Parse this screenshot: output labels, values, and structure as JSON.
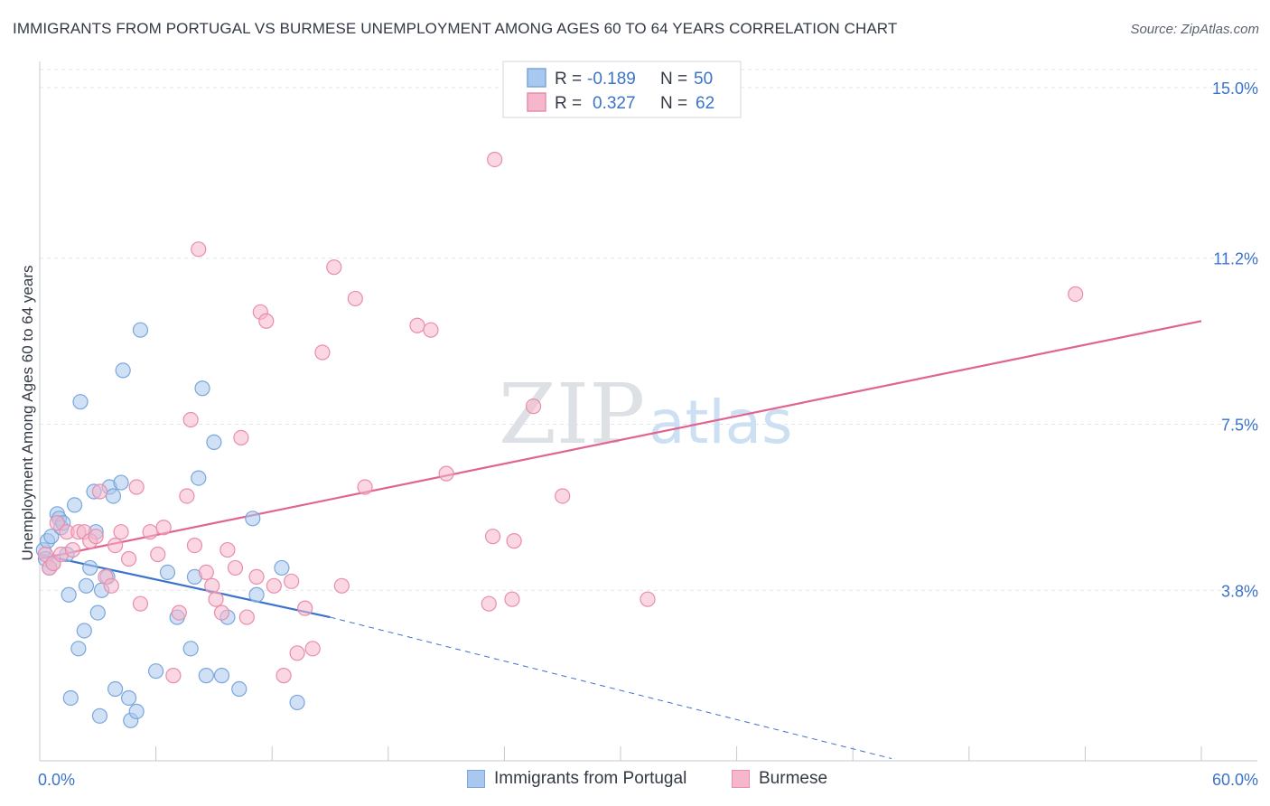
{
  "title": "IMMIGRANTS FROM PORTUGAL VS BURMESE UNEMPLOYMENT AMONG AGES 60 TO 64 YEARS CORRELATION CHART",
  "source": "Source: ZipAtlas.com",
  "watermark": {
    "zip": "ZIP",
    "atlas": "atlas"
  },
  "legend_stats": [
    {
      "r_label": "R =",
      "r_value": "-0.189",
      "n_label": "N =",
      "n_value": "50"
    },
    {
      "r_label": "R =",
      "r_value": "0.327",
      "n_label": "N =",
      "n_value": "62"
    }
  ],
  "legend_bottom": [
    "Immigrants from Portugal",
    "Burmese"
  ],
  "colors": {
    "blue_fill": "#a9c8ef",
    "blue_stroke": "#7aa6dc",
    "blue_line": "#3b73cc",
    "pink_fill": "#f6b6cb",
    "pink_stroke": "#e88eab",
    "pink_line": "#e0648f",
    "value_text": "#3b73cc",
    "grid": "#e3e6ea"
  },
  "chart_data": {
    "type": "scatter",
    "title": "IMMIGRANTS FROM PORTUGAL VS BURMESE UNEMPLOYMENT AMONG AGES 60 TO 64 YEARS CORRELATION CHART",
    "xlabel": "",
    "ylabel": "Unemployment Among Ages 60 to 64 years",
    "xlim": [
      0,
      60
    ],
    "ylim": [
      0,
      15.5
    ],
    "x_tick_labels": [
      {
        "value": 0,
        "label": "0.0%"
      },
      {
        "value": 60,
        "label": "60.0%"
      }
    ],
    "y_tick_labels": [
      {
        "value": 3.8,
        "label": "3.8%"
      },
      {
        "value": 7.5,
        "label": "7.5%"
      },
      {
        "value": 11.2,
        "label": "11.2%"
      },
      {
        "value": 15.0,
        "label": "15.0%"
      }
    ],
    "series": [
      {
        "name": "Immigrants from Portugal",
        "color": "blue",
        "points": [
          [
            0.2,
            4.7
          ],
          [
            0.3,
            4.5
          ],
          [
            0.4,
            4.9
          ],
          [
            0.5,
            4.3
          ],
          [
            0.6,
            5.0
          ],
          [
            0.7,
            4.4
          ],
          [
            0.9,
            5.5
          ],
          [
            1.0,
            5.4
          ],
          [
            1.1,
            5.2
          ],
          [
            1.2,
            5.3
          ],
          [
            1.4,
            4.6
          ],
          [
            1.5,
            3.7
          ],
          [
            1.6,
            1.4
          ],
          [
            1.8,
            5.7
          ],
          [
            2.0,
            2.5
          ],
          [
            2.1,
            8.0
          ],
          [
            2.3,
            2.9
          ],
          [
            2.4,
            3.9
          ],
          [
            2.6,
            4.3
          ],
          [
            2.8,
            6.0
          ],
          [
            2.9,
            5.1
          ],
          [
            3.0,
            3.3
          ],
          [
            3.1,
            1.0
          ],
          [
            3.2,
            3.8
          ],
          [
            3.5,
            4.1
          ],
          [
            3.6,
            6.1
          ],
          [
            3.8,
            5.9
          ],
          [
            3.9,
            1.6
          ],
          [
            4.2,
            6.2
          ],
          [
            4.3,
            8.7
          ],
          [
            4.6,
            1.4
          ],
          [
            4.7,
            0.9
          ],
          [
            5.0,
            1.1
          ],
          [
            5.2,
            9.6
          ],
          [
            6.0,
            2.0
          ],
          [
            6.6,
            4.2
          ],
          [
            7.1,
            3.2
          ],
          [
            7.8,
            2.5
          ],
          [
            8.0,
            4.1
          ],
          [
            8.2,
            6.3
          ],
          [
            8.4,
            8.3
          ],
          [
            8.6,
            1.9
          ],
          [
            9.0,
            7.1
          ],
          [
            9.4,
            1.9
          ],
          [
            9.7,
            3.2
          ],
          [
            10.3,
            1.6
          ],
          [
            11.0,
            5.4
          ],
          [
            11.2,
            3.7
          ],
          [
            12.5,
            4.3
          ],
          [
            13.3,
            1.3
          ]
        ],
        "trend": {
          "x1": 0,
          "y1": 4.6,
          "x2": 15,
          "y2": 3.2,
          "dashed_to_x": 44,
          "dashed_to_y": 0.05
        }
      },
      {
        "name": "Burmese",
        "color": "pink",
        "points": [
          [
            0.3,
            4.6
          ],
          [
            0.5,
            4.3
          ],
          [
            0.7,
            4.4
          ],
          [
            0.9,
            5.3
          ],
          [
            1.1,
            4.6
          ],
          [
            1.4,
            5.1
          ],
          [
            1.7,
            4.7
          ],
          [
            2.0,
            5.1
          ],
          [
            2.3,
            5.1
          ],
          [
            2.6,
            4.9
          ],
          [
            2.9,
            5.0
          ],
          [
            3.1,
            6.0
          ],
          [
            3.4,
            4.1
          ],
          [
            3.7,
            3.9
          ],
          [
            3.9,
            4.8
          ],
          [
            4.2,
            5.1
          ],
          [
            4.6,
            4.5
          ],
          [
            5.0,
            6.1
          ],
          [
            5.2,
            3.5
          ],
          [
            5.7,
            5.1
          ],
          [
            6.1,
            4.6
          ],
          [
            6.4,
            5.2
          ],
          [
            6.9,
            1.9
          ],
          [
            7.2,
            3.3
          ],
          [
            7.6,
            5.9
          ],
          [
            7.8,
            7.6
          ],
          [
            8.0,
            4.8
          ],
          [
            8.2,
            11.4
          ],
          [
            8.6,
            4.2
          ],
          [
            8.9,
            3.9
          ],
          [
            9.1,
            3.6
          ],
          [
            9.4,
            3.3
          ],
          [
            9.7,
            4.7
          ],
          [
            10.1,
            4.3
          ],
          [
            10.4,
            7.2
          ],
          [
            10.7,
            3.2
          ],
          [
            11.2,
            4.1
          ],
          [
            11.4,
            10.0
          ],
          [
            11.7,
            9.8
          ],
          [
            12.1,
            3.9
          ],
          [
            12.6,
            1.9
          ],
          [
            13.0,
            4.0
          ],
          [
            13.3,
            2.4
          ],
          [
            13.7,
            3.4
          ],
          [
            14.1,
            2.5
          ],
          [
            14.6,
            9.1
          ],
          [
            15.2,
            11.0
          ],
          [
            15.6,
            3.9
          ],
          [
            16.3,
            10.3
          ],
          [
            16.8,
            6.1
          ],
          [
            19.5,
            9.7
          ],
          [
            20.2,
            9.6
          ],
          [
            21.0,
            6.4
          ],
          [
            23.2,
            3.5
          ],
          [
            23.4,
            5.0
          ],
          [
            23.5,
            13.4
          ],
          [
            24.4,
            3.6
          ],
          [
            24.5,
            4.9
          ],
          [
            25.5,
            7.9
          ],
          [
            27.0,
            5.9
          ],
          [
            31.4,
            3.6
          ],
          [
            53.5,
            10.4
          ]
        ],
        "trend": {
          "x1": 0,
          "y1": 4.5,
          "x2": 60,
          "y2": 9.8
        }
      }
    ]
  }
}
